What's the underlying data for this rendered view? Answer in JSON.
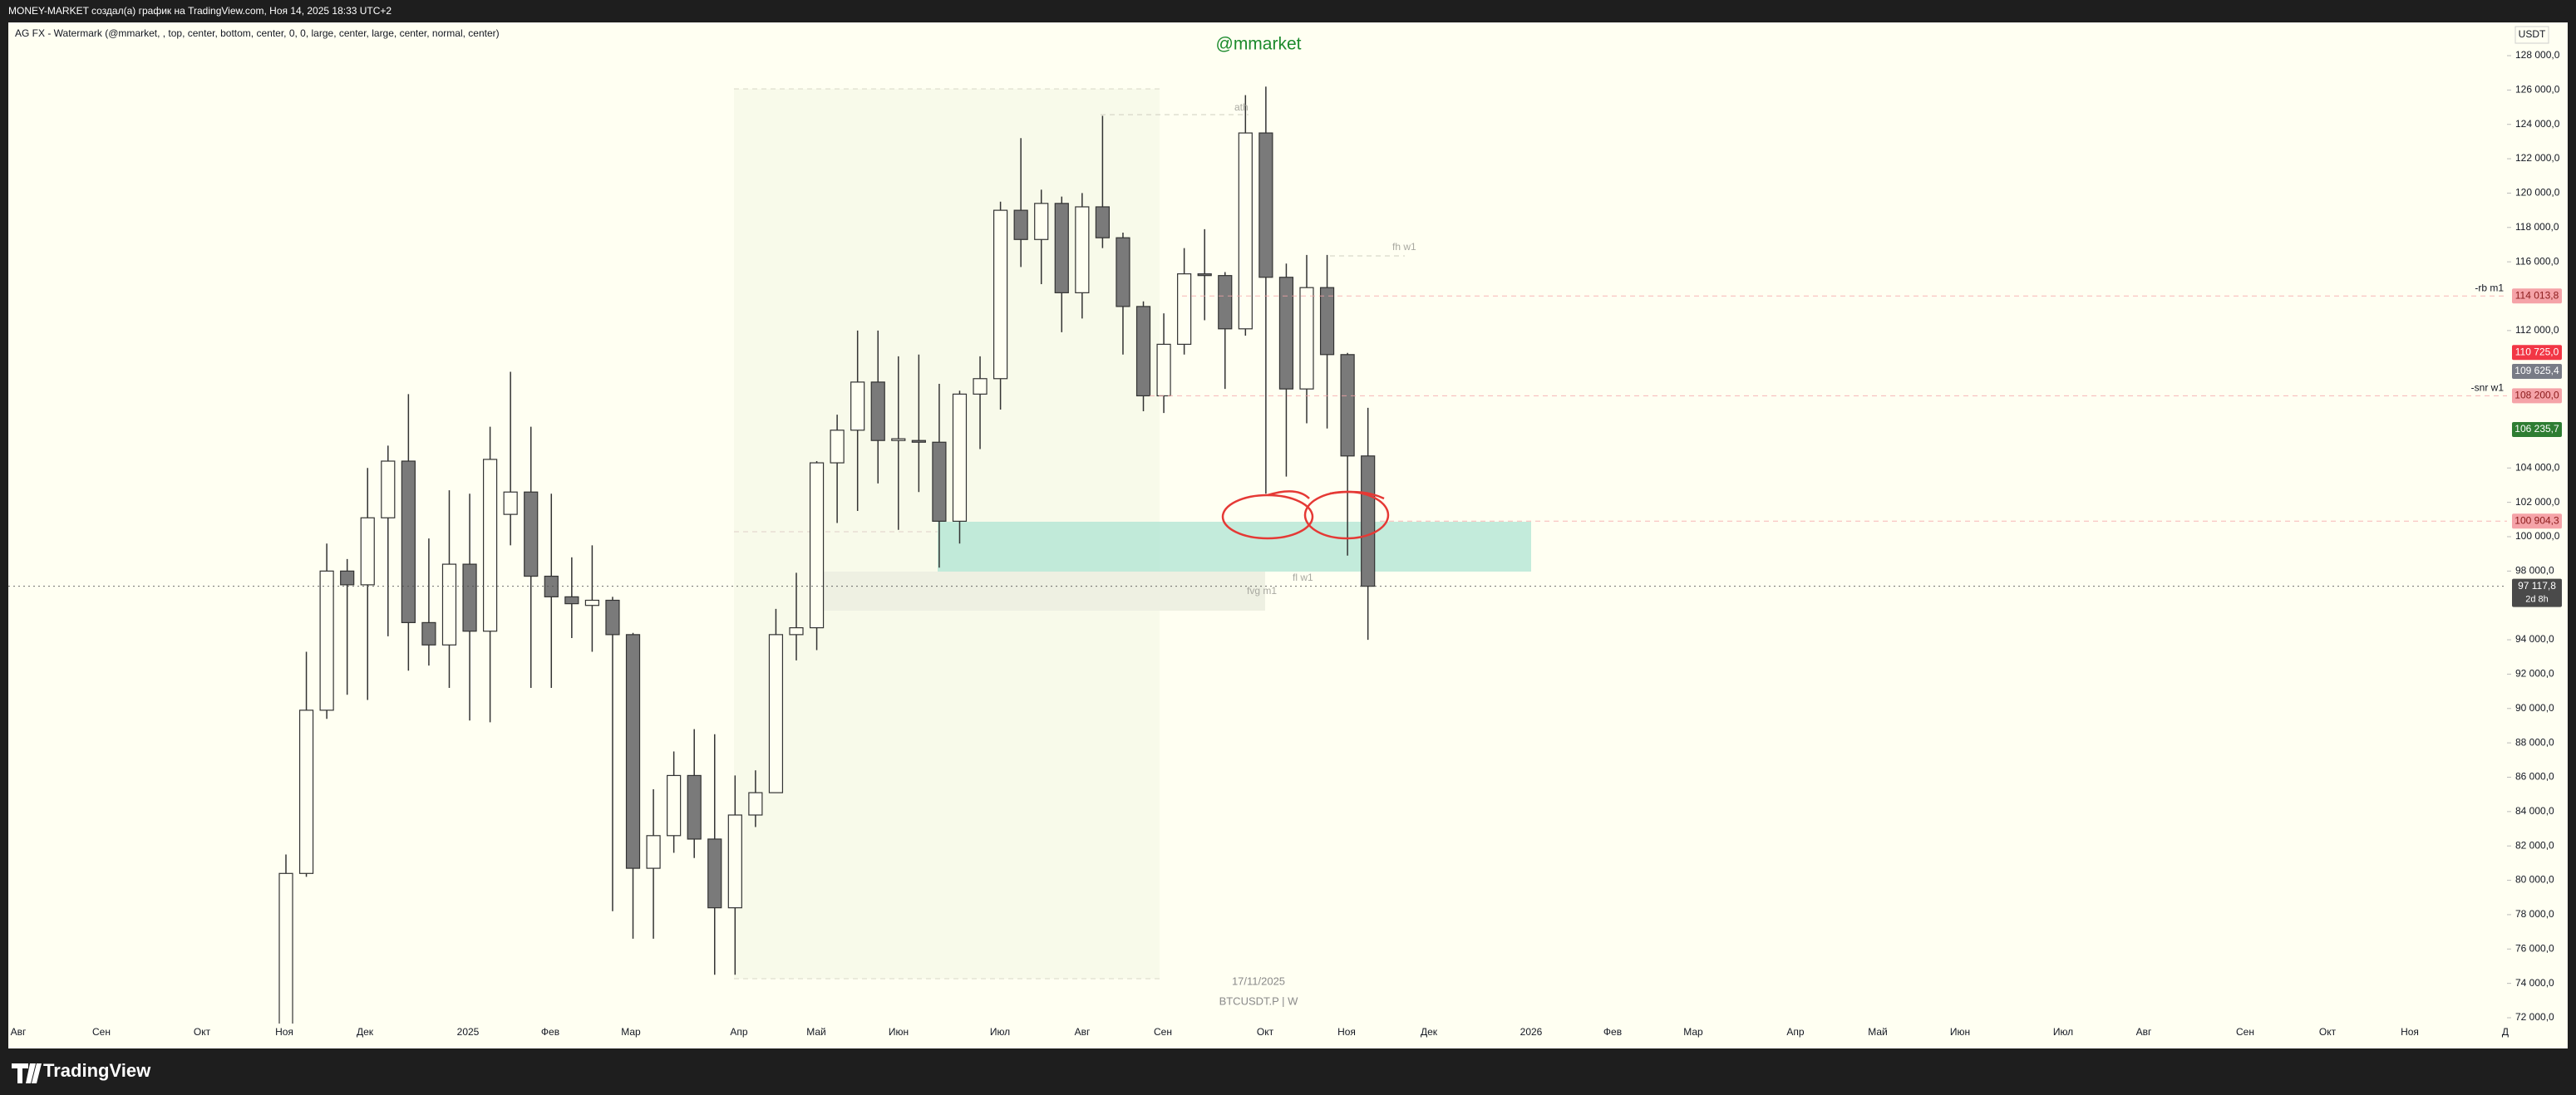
{
  "header": {
    "title": "MONEY-MARKET создал(а) график на TradingView.com, Ноя 14, 2025 18:33 UTC+2",
    "indicator": "AG FX - Watermark (@mmarket, , top, center, bottom, center, 0, 0, large, center, large, center, normal, center)",
    "currency": "USDT",
    "watermark": "@mmarket",
    "date": "17/11/2025",
    "symbol": "BTCUSDT.P | W"
  },
  "footer": {
    "brand": "TradingView"
  },
  "chart_data": {
    "type": "candlestick",
    "up_color": "#fffff2",
    "down_color": "#7a7a7a",
    "outline_color": "#333333",
    "open": [
      68800,
      80400,
      89900,
      98000,
      97200,
      101100,
      104400,
      95000,
      93700,
      98400,
      94500,
      101300,
      102600,
      97700,
      96500,
      96000,
      96300,
      94300,
      80700,
      82600,
      86100,
      82400,
      78400,
      83800,
      85100,
      94300,
      94700,
      104300,
      106200,
      109000,
      105600,
      105600,
      105500,
      100900,
      108300,
      109200,
      119000,
      117300,
      119400,
      114200,
      119200,
      117400,
      113400,
      108200,
      111200,
      115300,
      115200,
      112100,
      123500,
      115100,
      108600,
      114500,
      110600,
      104700
    ],
    "high": [
      81500,
      93300,
      99600,
      98700,
      104000,
      105300,
      108300,
      99900,
      102700,
      102500,
      106400,
      109600,
      106400,
      102500,
      98800,
      99500,
      96500,
      94400,
      85300,
      87500,
      88800,
      88500,
      86100,
      86400,
      95800,
      97900,
      104400,
      107100,
      112000,
      112000,
      110500,
      110600,
      108900,
      108500,
      110500,
      119500,
      123200,
      120200,
      119800,
      120000,
      124500,
      117700,
      113700,
      113000,
      116800,
      117900,
      115400,
      125700,
      126200,
      115900,
      116400,
      116400,
      110700,
      107500
    ],
    "low": [
      66800,
      80200,
      89400,
      90800,
      90500,
      94200,
      92200,
      92500,
      91200,
      89300,
      89200,
      99500,
      91200,
      91200,
      94100,
      93300,
      78200,
      76600,
      76600,
      81600,
      81300,
      74500,
      74500,
      83100,
      85100,
      92800,
      93400,
      100800,
      101500,
      103100,
      100400,
      102600,
      98200,
      99600,
      105100,
      107400,
      115700,
      114700,
      111900,
      112700,
      116800,
      110600,
      107300,
      107200,
      110600,
      112600,
      108600,
      111700,
      102500,
      103500,
      106600,
      106300,
      98900,
      94000
    ],
    "close": [
      80400,
      89900,
      98000,
      97200,
      101100,
      104400,
      95000,
      93700,
      98400,
      94500,
      104500,
      102600,
      97700,
      96500,
      96100,
      96300,
      94300,
      80700,
      82600,
      86100,
      82400,
      78400,
      83800,
      85100,
      94300,
      94700,
      104300,
      106200,
      109000,
      105600,
      105700,
      105500,
      100900,
      108300,
      109200,
      119000,
      117300,
      119400,
      114200,
      119200,
      117400,
      113400,
      108200,
      111200,
      115300,
      115200,
      112100,
      123500,
      115100,
      108600,
      114500,
      110600,
      104700,
      97117.8
    ],
    "ylim": [
      72000,
      128000
    ],
    "yticks": [
      {
        "value": 72000,
        "label": "72 000,0"
      },
      {
        "value": 74000,
        "label": "74 000,0"
      },
      {
        "value": 76000,
        "label": "76 000,0"
      },
      {
        "value": 78000,
        "label": "78 000,0"
      },
      {
        "value": 80000,
        "label": "80 000,0"
      },
      {
        "value": 82000,
        "label": "82 000,0"
      },
      {
        "value": 84000,
        "label": "84 000,0"
      },
      {
        "value": 86000,
        "label": "86 000,0"
      },
      {
        "value": 88000,
        "label": "88 000,0"
      },
      {
        "value": 90000,
        "label": "90 000,0"
      },
      {
        "value": 92000,
        "label": "92 000,0"
      },
      {
        "value": 94000,
        "label": "94 000,0"
      },
      {
        "value": 98000,
        "label": "98 000,0"
      },
      {
        "value": 100000,
        "label": "100 000,0"
      },
      {
        "value": 102000,
        "label": "102 000,0"
      },
      {
        "value": 104000,
        "label": "104 000,0"
      },
      {
        "value": 112000,
        "label": "112 000,0"
      },
      {
        "value": 116000,
        "label": "116 000,0"
      },
      {
        "value": 118000,
        "label": "118 000,0"
      },
      {
        "value": 120000,
        "label": "120 000,0"
      },
      {
        "value": 122000,
        "label": "122 000,0"
      },
      {
        "value": 124000,
        "label": "124 000,0"
      },
      {
        "value": 126000,
        "label": "126 000,0"
      },
      {
        "value": 128000,
        "label": "128 000,0"
      }
    ],
    "time_labels": [
      "Авг",
      "Сен",
      "Окт",
      "Ноя",
      "Дек",
      "2025",
      "Фев",
      "Мар",
      "Апр",
      "Май",
      "Июн",
      "Июл",
      "Авг",
      "Сен",
      "Окт",
      "Ноя",
      "Дек",
      "2026",
      "Фев",
      "Мар",
      "Апр",
      "Май",
      "Июн",
      "Июл",
      "Авг",
      "Сен",
      "Окт",
      "Ноя",
      "Д"
    ],
    "levels": [
      {
        "value": 114013.8,
        "label": "114 013,8",
        "name": "-rb m1",
        "color": "#f5a3a8"
      },
      {
        "value": 110725,
        "label": "110 725,0",
        "color": "#f23645"
      },
      {
        "value": 109625.4,
        "label": "109 625,4",
        "color": "#787b86"
      },
      {
        "value": 108200,
        "label": "108 200,0",
        "name": "-snr w1",
        "color": "#f5a3a8"
      },
      {
        "value": 106235.7,
        "label": "106 235,7",
        "color": "#2e7d32"
      },
      {
        "value": 100904.3,
        "label": "100 904,3",
        "color": "#f5a3a8"
      },
      {
        "value": 97117.8,
        "label": "97 117,8",
        "sub": "2d 8h",
        "color": "#4a4a4a"
      }
    ],
    "annotations": [
      "ath",
      "fh w1",
      "fl w1",
      "fvg m1"
    ]
  }
}
